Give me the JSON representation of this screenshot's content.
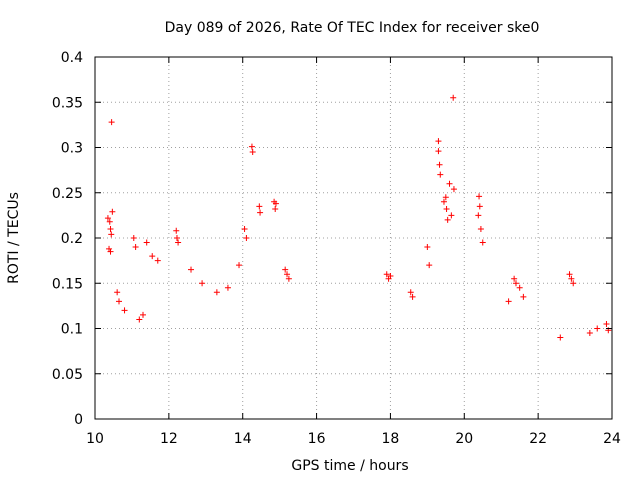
{
  "chart_data": {
    "type": "scatter",
    "title": "Day 089 of 2026, Rate Of TEC Index for receiver ske0",
    "xlabel": "GPS time / hours",
    "ylabel": "ROTI / TECUs",
    "xlim": [
      10,
      24
    ],
    "ylim": [
      0,
      0.4
    ],
    "x_ticks": [
      10,
      12,
      14,
      16,
      18,
      20,
      22,
      24
    ],
    "y_ticks": [
      0,
      0.05,
      0.1,
      0.15,
      0.2,
      0.25,
      0.3,
      0.35,
      0.4
    ],
    "x_tick_labels": [
      "10",
      "12",
      "14",
      "16",
      "18",
      "20",
      "22",
      "24"
    ],
    "y_tick_labels": [
      "0",
      "0.05",
      "0.1",
      "0.15",
      "0.2",
      "0.25",
      "0.3",
      "0.35",
      "0.4"
    ],
    "grid": true,
    "marker": "+",
    "point_color": "#ff0000",
    "series": [
      {
        "name": "ROTI",
        "points": [
          [
            10.45,
            0.328
          ],
          [
            14.25,
            0.301
          ],
          [
            14.27,
            0.295
          ],
          [
            19.3,
            0.307
          ],
          [
            19.3,
            0.296
          ],
          [
            19.33,
            0.281
          ],
          [
            19.35,
            0.27
          ],
          [
            19.7,
            0.355
          ],
          [
            19.72,
            0.254
          ],
          [
            20.4,
            0.246
          ],
          [
            20.42,
            0.235
          ],
          [
            10.35,
            0.222
          ],
          [
            10.4,
            0.218
          ],
          [
            10.42,
            0.21
          ],
          [
            10.44,
            0.204
          ],
          [
            10.47,
            0.229
          ],
          [
            10.38,
            0.188
          ],
          [
            10.42,
            0.185
          ],
          [
            14.45,
            0.235
          ],
          [
            14.47,
            0.228
          ],
          [
            14.85,
            0.24
          ],
          [
            14.9,
            0.238
          ],
          [
            14.88,
            0.232
          ],
          [
            14.05,
            0.21
          ],
          [
            14.1,
            0.2
          ],
          [
            12.2,
            0.208
          ],
          [
            12.22,
            0.2
          ],
          [
            12.25,
            0.195
          ],
          [
            19.45,
            0.24
          ],
          [
            19.5,
            0.245
          ],
          [
            19.52,
            0.232
          ],
          [
            19.55,
            0.22
          ],
          [
            19.6,
            0.26
          ],
          [
            19.65,
            0.225
          ],
          [
            20.38,
            0.225
          ],
          [
            20.45,
            0.21
          ],
          [
            20.5,
            0.195
          ],
          [
            22.85,
            0.16
          ],
          [
            22.9,
            0.155
          ],
          [
            22.95,
            0.15
          ],
          [
            15.15,
            0.165
          ],
          [
            15.2,
            0.16
          ],
          [
            15.25,
            0.155
          ],
          [
            17.9,
            0.16
          ],
          [
            17.95,
            0.155
          ],
          [
            18.0,
            0.158
          ],
          [
            18.55,
            0.14
          ],
          [
            18.6,
            0.135
          ],
          [
            19.0,
            0.19
          ],
          [
            19.05,
            0.17
          ],
          [
            21.35,
            0.155
          ],
          [
            21.4,
            0.15
          ],
          [
            21.5,
            0.145
          ],
          [
            21.6,
            0.135
          ],
          [
            21.2,
            0.13
          ],
          [
            11.05,
            0.2
          ],
          [
            11.1,
            0.19
          ],
          [
            11.4,
            0.195
          ],
          [
            11.55,
            0.18
          ],
          [
            11.7,
            0.175
          ],
          [
            12.6,
            0.165
          ],
          [
            12.9,
            0.15
          ],
          [
            13.3,
            0.14
          ],
          [
            13.6,
            0.145
          ],
          [
            13.9,
            0.17
          ],
          [
            10.6,
            0.14
          ],
          [
            10.65,
            0.13
          ],
          [
            10.8,
            0.12
          ],
          [
            11.2,
            0.11
          ],
          [
            11.3,
            0.115
          ],
          [
            23.4,
            0.095
          ],
          [
            23.6,
            0.1
          ],
          [
            23.85,
            0.105
          ],
          [
            23.9,
            0.098
          ],
          [
            22.6,
            0.09
          ]
        ]
      }
    ]
  }
}
